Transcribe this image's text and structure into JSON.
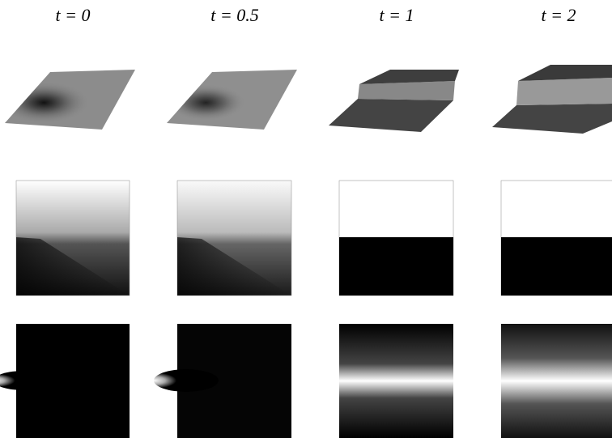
{
  "columns": [
    {
      "label": "t = 0"
    },
    {
      "label": "t = 0.5"
    },
    {
      "label": "t = 1"
    },
    {
      "label": "t = 2"
    }
  ]
}
